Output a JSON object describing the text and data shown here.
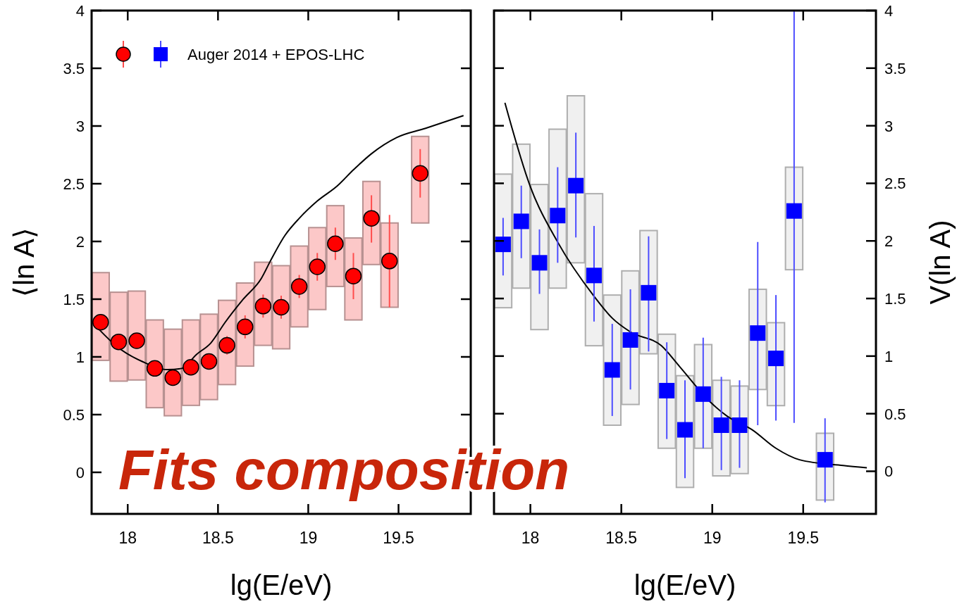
{
  "chart_data": [
    {
      "type": "scatter",
      "ylabel": "⟨ln A⟩",
      "xlabel": "lg(E/eV)",
      "xlim": [
        17.8,
        19.9
      ],
      "xticks": [
        18,
        18.5,
        19,
        19.5
      ],
      "ylim": [
        -0.36,
        4
      ],
      "yticks": [
        0,
        0.5,
        1,
        1.5,
        2,
        2.5,
        3,
        3.5,
        4
      ],
      "legend": "top left",
      "annotations": [
        "Fits composition"
      ],
      "series": [
        {
          "type": "bar",
          "color": "#fcc8c8",
          "x": [
            17.85,
            17.95,
            18.05,
            18.15,
            18.25,
            18.35,
            18.45,
            18.55,
            18.65,
            18.75,
            18.85,
            18.95,
            19.05,
            19.15,
            19.25,
            19.35,
            19.45,
            19.62
          ],
          "base": [
            0.97,
            0.79,
            0.8,
            0.56,
            0.49,
            0.58,
            0.63,
            0.76,
            0.92,
            1.1,
            1.07,
            1.26,
            1.41,
            1.61,
            1.32,
            1.8,
            1.43,
            2.16
          ],
          "values": [
            0.76,
            0.77,
            0.77,
            0.76,
            0.75,
            0.74,
            0.74,
            0.73,
            0.72,
            0.72,
            0.72,
            0.7,
            0.71,
            0.7,
            0.71,
            0.72,
            0.73,
            0.75
          ]
        },
        {
          "type": "line",
          "color": "#000000",
          "x": [
            17.84,
            17.94,
            18.08,
            18.22,
            18.3,
            18.38,
            18.46,
            18.54,
            18.64,
            18.74,
            18.79,
            18.87,
            18.95,
            19.05,
            19.16,
            19.25,
            19.35,
            19.49,
            19.65,
            19.86
          ],
          "values": [
            1.24,
            1.09,
            0.96,
            0.89,
            0.9,
            1.02,
            1.12,
            1.3,
            1.5,
            1.68,
            1.83,
            2.05,
            2.2,
            2.35,
            2.48,
            2.62,
            2.76,
            2.9,
            2.98,
            3.09
          ]
        },
        {
          "name": "Auger 2014 + EPOS-LHC",
          "marker": "circle",
          "color": "#ff0000",
          "x": [
            17.85,
            17.95,
            18.05,
            18.15,
            18.25,
            18.35,
            18.45,
            18.55,
            18.65,
            18.75,
            18.85,
            18.95,
            19.05,
            19.15,
            19.25,
            19.35,
            19.45,
            19.62
          ],
          "values": [
            1.3,
            1.13,
            1.14,
            0.9,
            0.82,
            0.91,
            0.96,
            1.1,
            1.26,
            1.44,
            1.43,
            1.61,
            1.78,
            1.98,
            1.7,
            2.2,
            1.83,
            2.59
          ],
          "errors": [
            0.07,
            0.06,
            0.06,
            0.06,
            0.07,
            0.06,
            0.07,
            0.08,
            0.1,
            0.1,
            0.1,
            0.1,
            0.12,
            0.14,
            0.2,
            [
              1.99,
              2.4
            ],
            [
              1.43,
              2.23
            ],
            [
              2.38,
              2.8
            ]
          ]
        }
      ]
    },
    {
      "type": "scatter",
      "y2label": "V(ln A)",
      "xlabel": "lg(E/eV)",
      "xlim": [
        17.8,
        19.9
      ],
      "xticks": [
        18,
        18.5,
        19,
        19.5
      ],
      "y2lim": [
        -0.37,
        4
      ],
      "y2ticks": [
        0,
        0.5,
        1,
        1.5,
        2,
        2.5,
        3,
        3.5,
        4
      ],
      "series": [
        {
          "type": "bar",
          "axis": "y2",
          "color": "#f0f0f0",
          "x": [
            17.85,
            17.95,
            18.05,
            18.15,
            18.25,
            18.35,
            18.45,
            18.55,
            18.65,
            18.75,
            18.85,
            18.95,
            19.05,
            19.15,
            19.25,
            19.35,
            19.45,
            19.62
          ],
          "base": [
            1.42,
            1.59,
            1.23,
            1.59,
            1.81,
            1.09,
            0.4,
            0.58,
            1.02,
            0.2,
            -0.14,
            0.2,
            -0.04,
            -0.02,
            0.71,
            0.57,
            1.75,
            -0.25
          ],
          "values": [
            1.16,
            1.25,
            1.26,
            1.38,
            1.45,
            1.32,
            1.13,
            1.16,
            1.07,
            0.99,
            0.97,
            0.9,
            0.83,
            0.76,
            0.87,
            0.72,
            0.89,
            0.58
          ]
        },
        {
          "type": "line",
          "axis": "y2",
          "color": "#000000",
          "x": [
            17.86,
            18.0,
            18.15,
            18.35,
            18.45,
            18.55,
            18.72,
            18.82,
            18.99,
            19.08,
            19.22,
            19.35,
            19.48,
            19.72,
            19.85
          ],
          "values": [
            3.2,
            2.47,
            1.99,
            1.52,
            1.33,
            1.21,
            1.09,
            0.91,
            0.6,
            0.48,
            0.36,
            0.2,
            0.1,
            0.05,
            0.03
          ]
        },
        {
          "axis": "y2",
          "marker": "square",
          "color": "#0000ff",
          "x": [
            17.85,
            17.95,
            18.05,
            18.15,
            18.25,
            18.35,
            18.45,
            18.55,
            18.65,
            18.75,
            18.85,
            18.95,
            19.05,
            19.15,
            19.25,
            19.35,
            19.45,
            19.62
          ],
          "values": [
            1.97,
            2.17,
            1.81,
            2.22,
            2.48,
            1.7,
            0.88,
            1.14,
            1.55,
            0.7,
            0.36,
            0.67,
            0.4,
            0.4,
            1.2,
            0.98,
            2.26,
            0.1
          ],
          "errors": [
            [
              1.7,
              2.2
            ],
            [
              1.85,
              2.48
            ],
            [
              1.54,
              2.1
            ],
            [
              1.81,
              2.64
            ],
            [
              2.03,
              2.94
            ],
            [
              1.3,
              2.13
            ],
            [
              0.48,
              1.28
            ],
            [
              0.71,
              1.58
            ],
            [
              1.04,
              2.04
            ],
            [
              0.28,
              1.12
            ],
            [
              -0.06,
              0.79
            ],
            [
              0.2,
              1.16
            ],
            [
              0.01,
              0.82
            ],
            [
              0.03,
              0.79
            ],
            [
              0.4,
              1.99
            ],
            [
              0.44,
              1.53
            ],
            [
              0.42,
              4
            ],
            [
              -0.27,
              0.46
            ]
          ]
        }
      ]
    }
  ]
}
